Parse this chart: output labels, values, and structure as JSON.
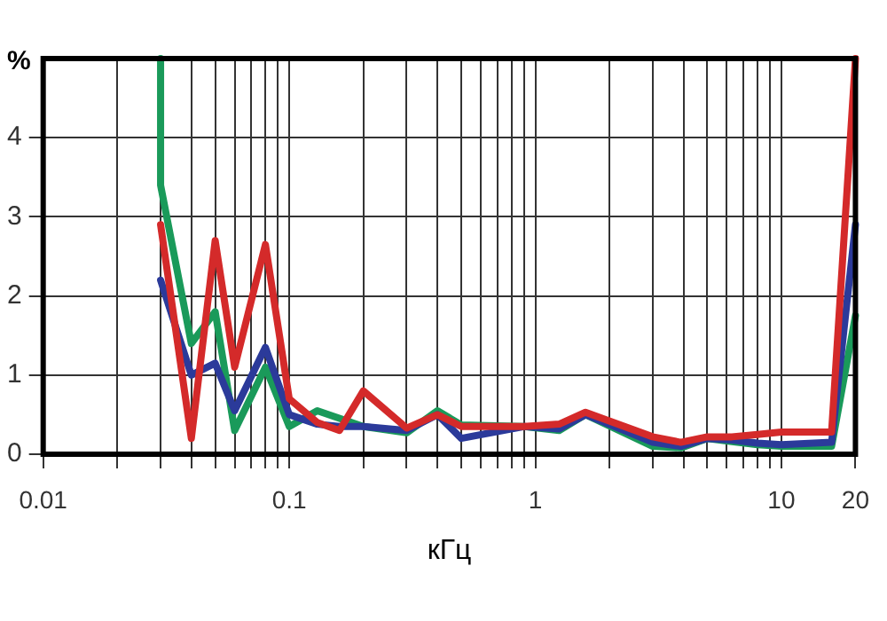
{
  "chart_data": {
    "type": "line",
    "xlabel": "кГц",
    "ylabel": "%",
    "log": "x",
    "grid": true,
    "legend": false,
    "marker": "none",
    "line_style": "solid",
    "xlim": [
      0.01,
      20
    ],
    "ylim": [
      0,
      5
    ],
    "xticks": [
      0.01,
      {
        "value": 0.02,
        "label": null
      },
      {
        "value": 0.03,
        "label": null
      },
      {
        "value": 0.04,
        "label": null
      },
      {
        "value": 0.05,
        "label": null
      },
      {
        "value": 0.06,
        "label": null
      },
      {
        "value": 0.07,
        "label": null
      },
      {
        "value": 0.08,
        "label": null
      },
      {
        "value": 0.09,
        "label": null
      },
      0.1,
      {
        "value": 0.2,
        "label": null
      },
      {
        "value": 0.3,
        "label": null
      },
      {
        "value": 0.4,
        "label": null
      },
      {
        "value": 0.5,
        "label": null
      },
      {
        "value": 0.6,
        "label": null
      },
      {
        "value": 0.7,
        "label": null
      },
      {
        "value": 0.8,
        "label": null
      },
      {
        "value": 0.9,
        "label": null
      },
      1,
      {
        "value": 2,
        "label": null
      },
      {
        "value": 3,
        "label": null
      },
      {
        "value": 4,
        "label": null
      },
      {
        "value": 5,
        "label": null
      },
      {
        "value": 6,
        "label": null
      },
      {
        "value": 7,
        "label": null
      },
      {
        "value": 8,
        "label": null
      },
      {
        "value": 9,
        "label": null
      },
      10,
      20
    ],
    "yticks": [
      0,
      1,
      2,
      3,
      4
    ],
    "series": [
      {
        "color": "#d42a2a",
        "x": [
          0.03,
          0.04,
          0.05,
          0.06,
          0.08,
          0.1,
          0.13,
          0.16,
          0.2,
          0.3,
          0.4,
          0.5,
          0.9,
          1.25,
          1.6,
          3,
          3.9,
          5,
          6.3,
          8,
          10,
          16,
          20
        ],
        "values": [
          2.9,
          0.2,
          2.7,
          1.1,
          2.65,
          0.7,
          0.4,
          0.3,
          0.8,
          0.33,
          0.5,
          0.35,
          0.35,
          0.38,
          0.53,
          0.22,
          0.15,
          0.22,
          0.22,
          0.25,
          0.28,
          0.28,
          5
        ]
      },
      {
        "color": "#2b3a9a",
        "x": [
          0.03,
          0.04,
          0.05,
          0.06,
          0.08,
          0.1,
          0.13,
          0.16,
          0.2,
          0.3,
          0.4,
          0.5,
          0.9,
          1.25,
          1.6,
          3,
          3.9,
          5,
          6.3,
          8,
          10,
          16,
          20
        ],
        "values": [
          2.2,
          1.0,
          1.15,
          0.55,
          1.35,
          0.5,
          0.38,
          0.35,
          0.35,
          0.3,
          0.5,
          0.2,
          0.35,
          0.32,
          0.5,
          0.15,
          0.1,
          0.2,
          0.18,
          0.14,
          0.12,
          0.15,
          2.9
        ]
      },
      {
        "color": "#1a9a5a",
        "x": [
          0.03,
          0.03,
          0.04,
          0.05,
          0.06,
          0.08,
          0.1,
          0.13,
          0.2,
          0.3,
          0.4,
          0.5,
          0.9,
          1.25,
          1.6,
          3,
          3.9,
          5,
          6.3,
          8,
          10,
          16,
          20
        ],
        "values": [
          5,
          3.4,
          1.4,
          1.8,
          0.3,
          1.1,
          0.35,
          0.55,
          0.35,
          0.27,
          0.55,
          0.37,
          0.35,
          0.3,
          0.5,
          0.1,
          0.08,
          0.2,
          0.16,
          0.12,
          0.1,
          0.1,
          1.75
        ]
      }
    ]
  }
}
